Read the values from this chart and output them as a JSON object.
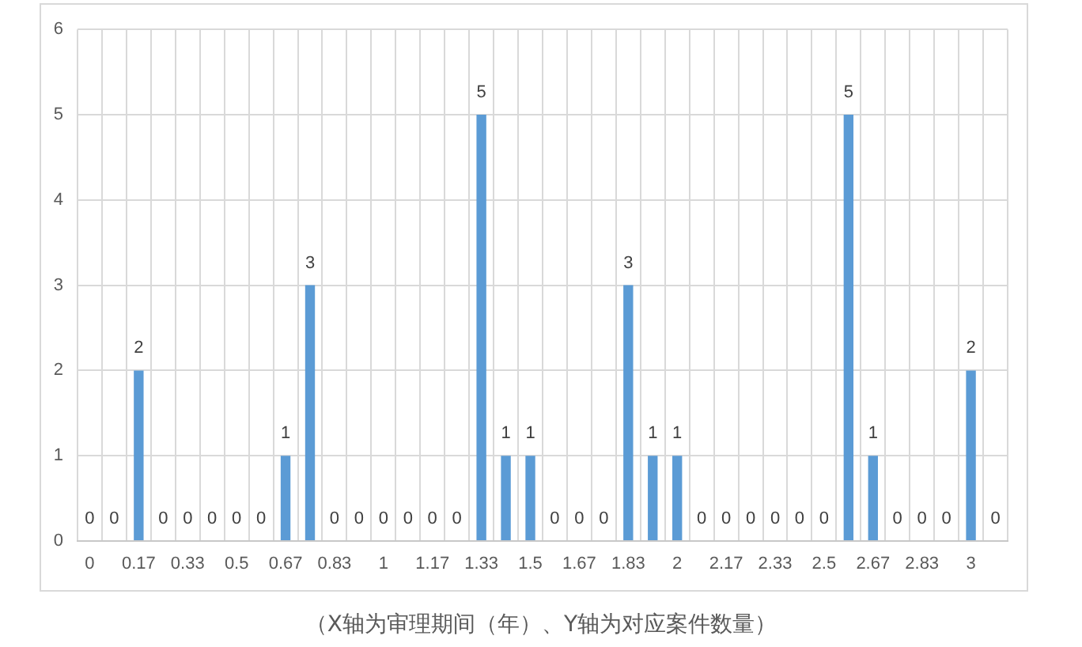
{
  "chart_data": {
    "type": "bar",
    "categories": [
      "0",
      null,
      "0.17",
      null,
      "0.33",
      null,
      "0.5",
      null,
      "0.67",
      null,
      "0.83",
      null,
      "1",
      null,
      "1.17",
      null,
      "1.33",
      null,
      "1.5",
      null,
      "1.67",
      null,
      "1.83",
      null,
      "2",
      null,
      "2.17",
      null,
      "2.33",
      null,
      "2.5",
      null,
      "2.67",
      null,
      "2.83",
      null,
      "3",
      null
    ],
    "values": [
      0,
      0,
      2,
      0,
      0,
      0,
      0,
      0,
      1,
      3,
      0,
      0,
      0,
      0,
      0,
      0,
      5,
      1,
      1,
      0,
      0,
      0,
      3,
      1,
      1,
      0,
      0,
      0,
      0,
      0,
      0,
      5,
      1,
      0,
      0,
      0,
      2,
      0
    ],
    "color": "#5b9bd5",
    "ylim": [
      0,
      6
    ],
    "yticks": [
      0,
      1,
      2,
      3,
      4,
      5,
      6
    ],
    "grid": true,
    "data_labels": true,
    "legend": false,
    "annotations": [
      "（X轴为审理期间（年）、Y轴为对应案件数量）"
    ]
  }
}
